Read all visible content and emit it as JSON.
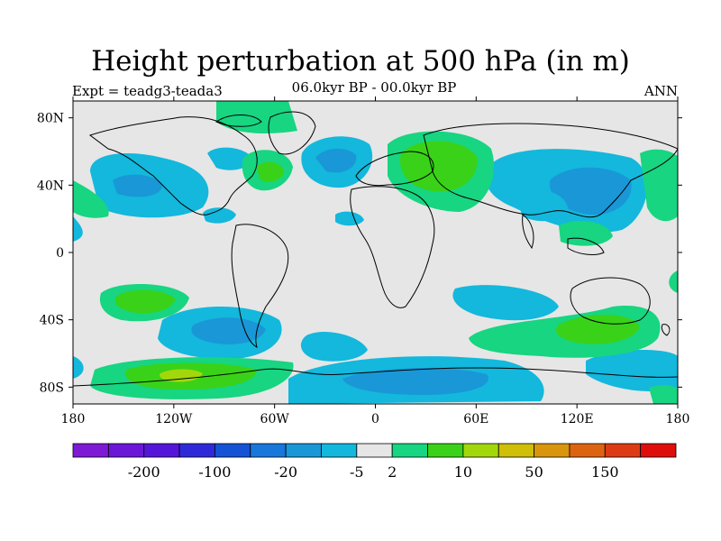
{
  "title": "Height perturbation at 500 hPa (in m)",
  "subtitle": "06.0kyr BP - 00.0kyr BP",
  "left_label": "Expt = teadg3-teada3",
  "right_label": "ANN",
  "map": {
    "x_ticks": [
      "180",
      "120W",
      "60W",
      "0",
      "60E",
      "120E",
      "180"
    ],
    "y_ticks": [
      "80N",
      "40N",
      "0",
      "40S",
      "80S"
    ],
    "ocean_color": "#e6e6e6"
  },
  "colorbar": {
    "colors": [
      "#7e19d6",
      "#6b17d8",
      "#5416d9",
      "#2f2ad9",
      "#1652d6",
      "#1777da",
      "#1a97d7",
      "#13b8dc",
      "#e6e6e6",
      "#17d581",
      "#3ad218",
      "#a2d80b",
      "#cfbf09",
      "#d9950c",
      "#dc6410",
      "#dc3b14",
      "#e00d0d"
    ],
    "labels": [
      "-200",
      "-100",
      "-20",
      "-5",
      "2",
      "10",
      "50",
      "150"
    ]
  }
}
